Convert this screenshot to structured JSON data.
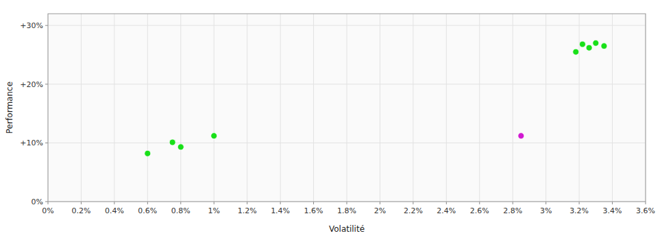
{
  "chart_data": {
    "type": "scatter",
    "x_label": "Volatilité",
    "y_label": "Performance",
    "xlim": [
      0.0,
      0.036
    ],
    "ylim": [
      0.0,
      0.32
    ],
    "xticks": [
      {
        "value": 0.0,
        "label": "0%"
      },
      {
        "value": 0.002,
        "label": "0.2%"
      },
      {
        "value": 0.004,
        "label": "0.4%"
      },
      {
        "value": 0.006,
        "label": "0.6%"
      },
      {
        "value": 0.008,
        "label": "0.8%"
      },
      {
        "value": 0.01,
        "label": "1%"
      },
      {
        "value": 0.012,
        "label": "1.2%"
      },
      {
        "value": 0.014,
        "label": "1.4%"
      },
      {
        "value": 0.016,
        "label": "1.6%"
      },
      {
        "value": 0.018,
        "label": "1.8%"
      },
      {
        "value": 0.02,
        "label": "2%"
      },
      {
        "value": 0.022,
        "label": "2.2%"
      },
      {
        "value": 0.024,
        "label": "2.4%"
      },
      {
        "value": 0.026,
        "label": "2.6%"
      },
      {
        "value": 0.028,
        "label": "2.8%"
      },
      {
        "value": 0.03,
        "label": "3%"
      },
      {
        "value": 0.032,
        "label": "3.2%"
      },
      {
        "value": 0.034,
        "label": "3.4%"
      },
      {
        "value": 0.036,
        "label": "3.6%"
      }
    ],
    "yticks": [
      {
        "value": 0.0,
        "label": "0%"
      },
      {
        "value": 0.1,
        "label": "+10%"
      },
      {
        "value": 0.2,
        "label": "+20%"
      },
      {
        "value": 0.3,
        "label": "+30%"
      }
    ],
    "grid": true,
    "series": [
      {
        "color": "#00dd00",
        "x": [
          0.006,
          0.0075,
          0.008,
          0.01,
          0.0318,
          0.0322,
          0.0326,
          0.033,
          0.0335
        ],
        "values": [
          0.082,
          0.101,
          0.093,
          0.112,
          0.255,
          0.268,
          0.262,
          0.27,
          0.265
        ]
      },
      {
        "color": "#cc00cc",
        "x": [
          0.0285
        ],
        "values": [
          0.112
        ]
      }
    ]
  }
}
